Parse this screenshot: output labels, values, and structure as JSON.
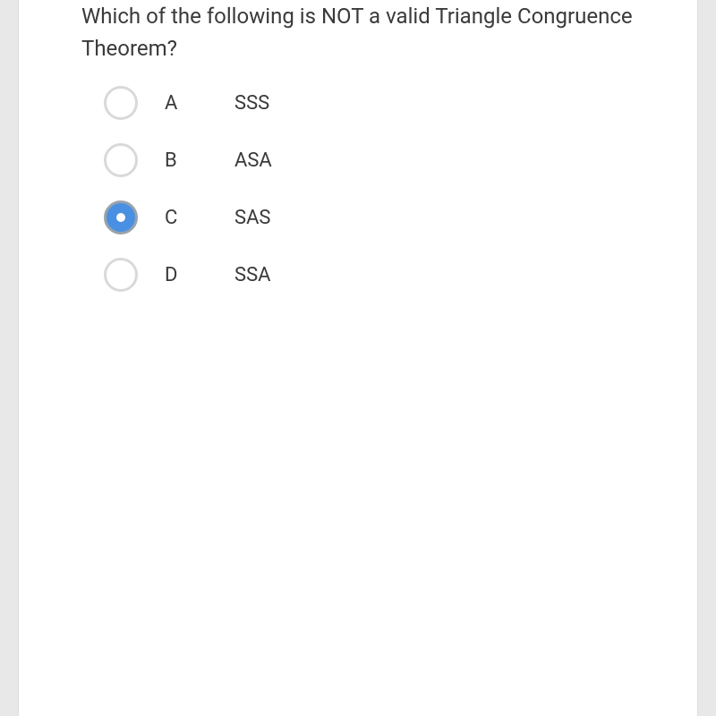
{
  "question": {
    "text": "Which of the following is NOT a valid Triangle Congruence Theorem?"
  },
  "options": [
    {
      "letter": "A",
      "label": "SSS",
      "selected": false
    },
    {
      "letter": "B",
      "label": "ASA",
      "selected": false
    },
    {
      "letter": "C",
      "label": "SAS",
      "selected": true
    },
    {
      "letter": "D",
      "label": "SSA",
      "selected": false
    }
  ],
  "colors": {
    "background": "#e8e8e8",
    "card_bg": "#ffffff",
    "text": "#3a3a3a",
    "radio_border": "#d9d9d9",
    "radio_selected_border": "#9aa3ab",
    "radio_selected_fill": "#4a90e2",
    "radio_dot": "#ffffff"
  }
}
